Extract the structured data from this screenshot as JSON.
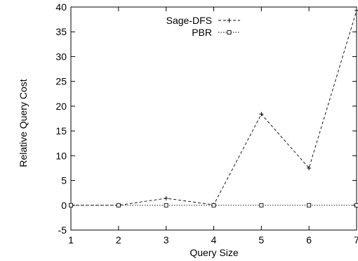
{
  "chart_data": {
    "type": "line",
    "title": "",
    "xlabel": "Query Size",
    "ylabel": "Relative Query Cost",
    "x": [
      1,
      2,
      3,
      4,
      5,
      6,
      7
    ],
    "xlim": [
      1,
      7
    ],
    "ylim": [
      -5,
      40
    ],
    "xticks": [
      "1",
      "2",
      "3",
      "4",
      "5",
      "6",
      "7"
    ],
    "yticks": [
      "-5",
      "0",
      "5",
      "10",
      "15",
      "20",
      "25",
      "30",
      "35",
      "40"
    ],
    "grid": false,
    "legend_position": "top-right",
    "series": [
      {
        "name": "Sage-DFS",
        "values": [
          0,
          0,
          1.4,
          0.1,
          18.4,
          7.5,
          39.3
        ],
        "line_style": "dashed",
        "marker": "plus"
      },
      {
        "name": "PBR",
        "values": [
          0,
          0,
          0,
          0,
          0,
          0,
          0
        ],
        "line_style": "dotted",
        "marker": "square"
      }
    ]
  }
}
